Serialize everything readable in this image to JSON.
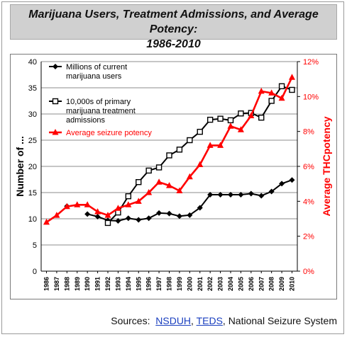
{
  "title": {
    "line1": "Marijuana Users, Treatment Admissions, and Average Potency:",
    "line2": "1986-2010"
  },
  "sources": {
    "label": "Sources:",
    "link1": "NSDUH",
    "sep1": ",",
    "link2": "TEDS",
    "rest": ", National Seizure System"
  },
  "chart_data": {
    "type": "line",
    "categories": [
      "1986",
      "1987",
      "1988",
      "1989",
      "1990",
      "1991",
      "1992",
      "1993",
      "1994",
      "1995",
      "1996",
      "1997",
      "1998",
      "1999",
      "2000",
      "2001",
      "2002",
      "2003",
      "2004",
      "2005",
      "2006",
      "2007",
      "2008",
      "2009",
      "2010"
    ],
    "ylabel": "Number of ...",
    "y2label": "Average THCpotency",
    "ylim": [
      0,
      40
    ],
    "yticks": [
      "0",
      "5",
      "10",
      "15",
      "20",
      "25",
      "30",
      "35",
      "40"
    ],
    "y2lim": [
      0,
      12
    ],
    "y2ticks": [
      "0%",
      "2%",
      "4%",
      "6%",
      "8%",
      "10%",
      "12%"
    ],
    "grid": true,
    "legend_position": "top-left",
    "series": [
      {
        "name": "Millions of current marijuana users",
        "axis": "left",
        "color": "#000000",
        "marker": "diamond",
        "values": [
          null,
          null,
          12.4,
          null,
          10.9,
          10.4,
          9.7,
          9.6,
          10.1,
          9.8,
          10.1,
          11.1,
          11.0,
          10.5,
          10.7,
          12.1,
          14.6,
          14.6,
          14.6,
          14.6,
          14.8,
          14.4,
          15.2,
          16.7,
          17.4
        ]
      },
      {
        "name": "10,000s of primary marijuana treatment admissions",
        "axis": "left",
        "color": "#000000",
        "marker": "square-open",
        "values": [
          null,
          null,
          null,
          null,
          null,
          null,
          9.2,
          11.2,
          14.3,
          17.0,
          19.2,
          19.8,
          22.1,
          23.2,
          25.0,
          26.6,
          28.9,
          29.1,
          28.8,
          30.1,
          30.2,
          29.3,
          32.5,
          35.3,
          34.6
        ]
      },
      {
        "name": "Average seizure potency",
        "axis": "right",
        "color": "#ff0000",
        "marker": "triangle",
        "values": [
          2.8,
          3.2,
          3.7,
          3.8,
          3.8,
          3.4,
          3.2,
          3.6,
          3.8,
          4.0,
          4.5,
          5.1,
          4.9,
          4.6,
          5.4,
          6.1,
          7.2,
          7.2,
          8.3,
          8.1,
          8.9,
          10.3,
          10.2,
          9.9,
          11.1
        ]
      }
    ]
  }
}
